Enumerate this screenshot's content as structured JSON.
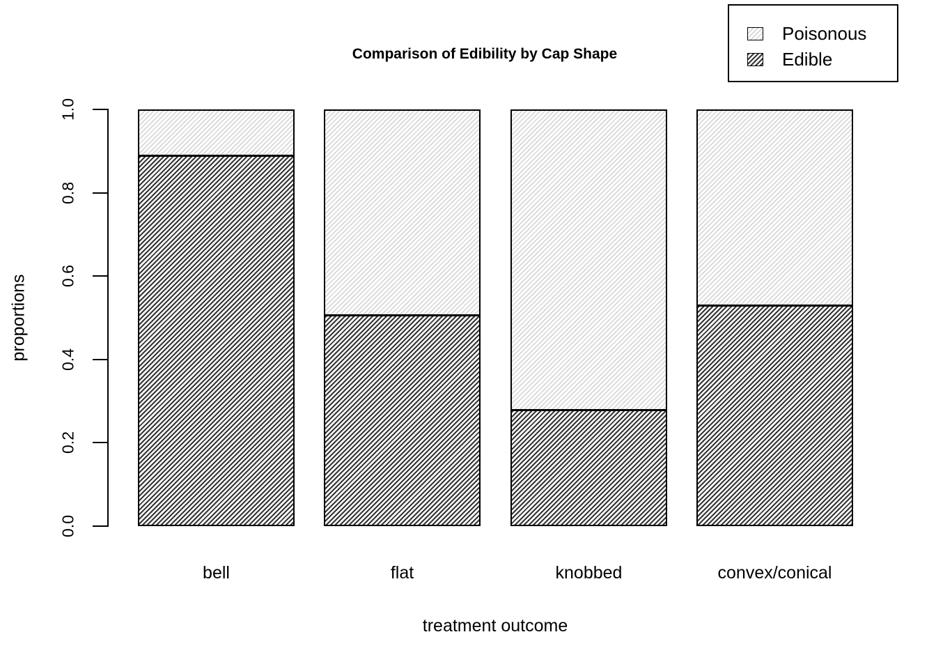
{
  "title": "Comparison of Edibility by Cap Shape",
  "axes": {
    "y_label": "proportions",
    "x_label": "treatment outcome",
    "y_tick_labels": [
      "0.0",
      "0.2",
      "0.4",
      "0.6",
      "0.8",
      "1.0"
    ]
  },
  "legend": {
    "items": [
      {
        "label": "Poisonous",
        "swatch": "light-diagonal-hatch"
      },
      {
        "label": "Edible",
        "swatch": "dark-diagonal-hatch"
      }
    ]
  },
  "colors": {
    "background": "#ffffff",
    "border": "#000000",
    "edible_hatch": "#343434",
    "poisonous_hatch": "#d7d7d7"
  },
  "chart_data": {
    "type": "bar",
    "stacked": true,
    "title": "Comparison of Edibility by Cap Shape",
    "xlabel": "treatment outcome",
    "ylabel": "proportions",
    "categories": [
      "bell",
      "flat",
      "knobbed",
      "convex/conical"
    ],
    "series": [
      {
        "name": "Edible",
        "values": [
          0.894,
          0.506,
          0.275,
          0.53
        ],
        "fill": "dense diagonal hatch /",
        "hatch_color": "#343434"
      },
      {
        "name": "Poisonous",
        "values": [
          0.106,
          0.494,
          0.725,
          0.47
        ],
        "fill": "light diagonal hatch /",
        "hatch_color": "#d7d7d7"
      }
    ],
    "ylim": [
      0,
      1
    ],
    "yticks": [
      0.0,
      0.2,
      0.4,
      0.6,
      0.8,
      1.0
    ],
    "grid": false,
    "legend_position": "top-right",
    "legend_order": [
      "Poisonous",
      "Edible"
    ]
  }
}
